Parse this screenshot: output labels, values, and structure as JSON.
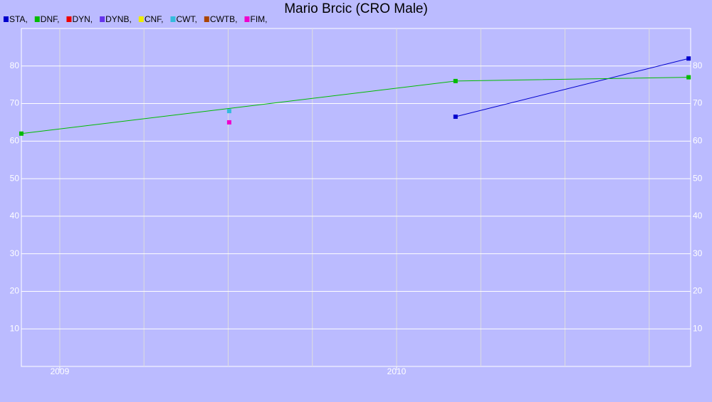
{
  "chart_data": {
    "type": "line",
    "title": "Mario Brcic (CRO Male)",
    "xlim": [
      2008.886,
      2010.873
    ],
    "xticks": [
      2009,
      2010
    ],
    "xgrid": [
      2009,
      2009.25,
      2009.5,
      2009.75,
      2010,
      2010.25,
      2010.5,
      2010.75
    ],
    "ylim": [
      0,
      90
    ],
    "yticks": [
      10,
      20,
      30,
      40,
      50,
      60,
      70,
      80
    ],
    "grid": true,
    "series": [
      {
        "name": "STA,",
        "color": "#0000cc",
        "x": [
          2010.175,
          2010.867
        ],
        "values": [
          66.5,
          82
        ]
      },
      {
        "name": "DNF,",
        "color": "#00bb00",
        "x": [
          2008.886,
          2010.175,
          2010.867
        ],
        "values": [
          62,
          76,
          77
        ]
      },
      {
        "name": "DYN,",
        "color": "#ee0000",
        "x": [],
        "values": []
      },
      {
        "name": "DYNB,",
        "color": "#6633ee",
        "x": [],
        "values": []
      },
      {
        "name": "CNF,",
        "color": "#eeee00",
        "x": [],
        "values": []
      },
      {
        "name": "CWT,",
        "color": "#33bbdd",
        "x": [
          2009.503
        ],
        "values": [
          68
        ]
      },
      {
        "name": "CWTB,",
        "color": "#aa4400",
        "x": [],
        "values": []
      },
      {
        "name": "FIM,",
        "color": "#ee00cc",
        "x": [
          2009.503
        ],
        "values": [
          65
        ]
      }
    ]
  }
}
